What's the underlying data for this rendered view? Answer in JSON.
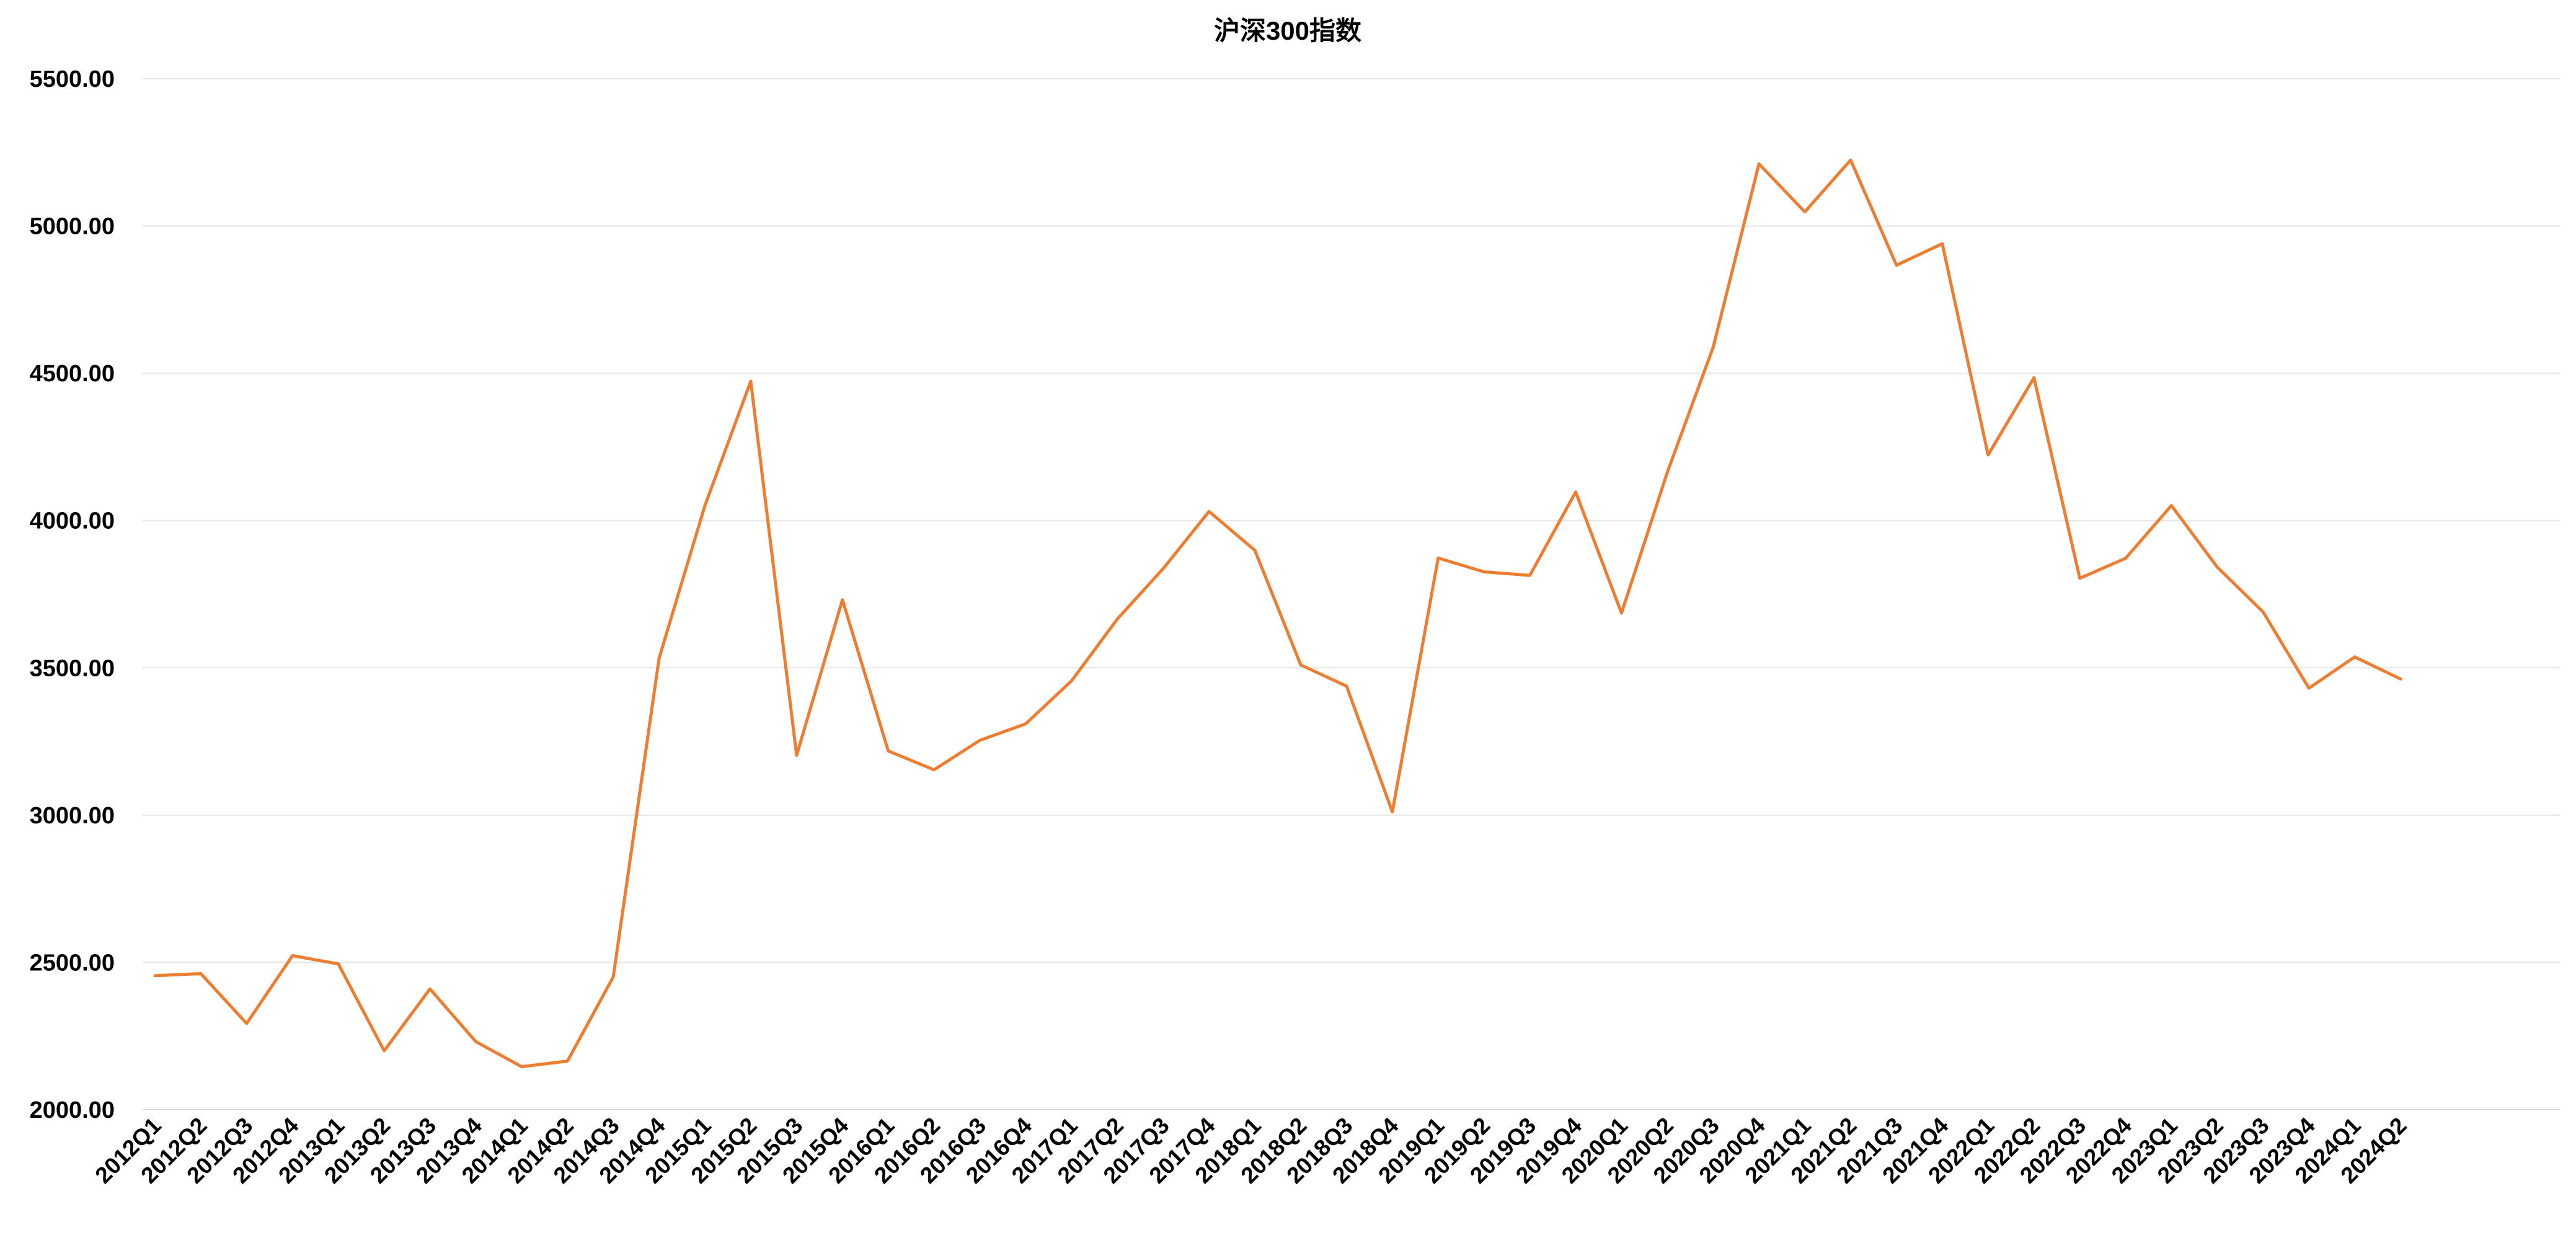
{
  "chart_data": {
    "type": "line",
    "title": "沪深300指数",
    "xlabel": "",
    "ylabel": "",
    "ylim": [
      2000,
      5500
    ],
    "yticks": [
      "2000.00",
      "2500.00",
      "3000.00",
      "3500.00",
      "4000.00",
      "4500.00",
      "5000.00",
      "5500.00"
    ],
    "grid": true,
    "legend": "none",
    "categories": [
      "2012Q1",
      "2012Q2",
      "2012Q3",
      "2012Q4",
      "2013Q1",
      "2013Q2",
      "2013Q3",
      "2013Q4",
      "2014Q1",
      "2014Q2",
      "2014Q3",
      "2014Q4",
      "2015Q1",
      "2015Q2",
      "2015Q3",
      "2015Q4",
      "2016Q1",
      "2016Q2",
      "2016Q3",
      "2016Q4",
      "2017Q1",
      "2017Q2",
      "2017Q3",
      "2017Q4",
      "2018Q1",
      "2018Q2",
      "2018Q3",
      "2018Q4",
      "2019Q1",
      "2019Q2",
      "2019Q3",
      "2019Q4",
      "2020Q1",
      "2020Q2",
      "2020Q3",
      "2020Q4",
      "2021Q1",
      "2021Q2",
      "2021Q3",
      "2021Q4",
      "2022Q1",
      "2022Q2",
      "2022Q3",
      "2022Q4",
      "2023Q1",
      "2023Q2",
      "2023Q3",
      "2023Q4",
      "2024Q1",
      "2024Q2"
    ],
    "series": [
      {
        "name": "",
        "color": "#ed7d31",
        "values": [
          2455,
          2462,
          2293,
          2523,
          2495,
          2200,
          2410,
          2231,
          2146,
          2165,
          2451,
          3533,
          4051,
          4473,
          3203,
          3731,
          3218,
          3154,
          3254,
          3310,
          3456,
          3666,
          3837,
          4031,
          3899,
          3510,
          3438,
          3011,
          3873,
          3826,
          3814,
          4097,
          3686,
          4164,
          4588,
          5211,
          5048,
          5224,
          4867,
          4940,
          4223,
          4485,
          3804,
          3872,
          4051,
          3842,
          3690,
          3431,
          3537,
          3462
        ]
      }
    ]
  }
}
